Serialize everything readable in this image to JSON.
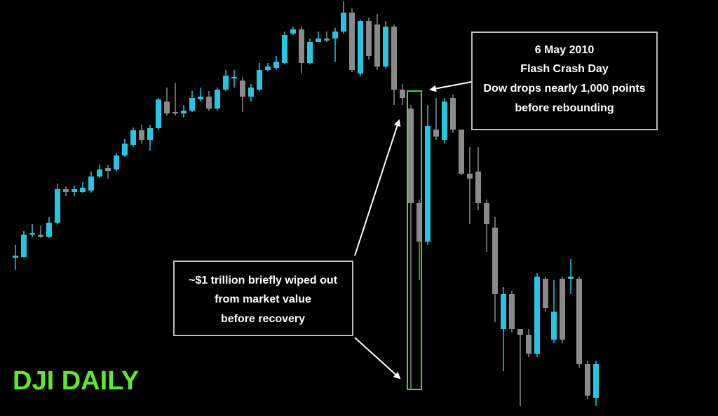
{
  "chart_data": {
    "type": "candlestick",
    "title": "DJI DAILY",
    "up_color": "#29c5e0",
    "down_color": "#8a8a8a",
    "ylim": [
      0,
      594
    ],
    "open": [
      226,
      227,
      259,
      259,
      256,
      276,
      324,
      320,
      320,
      322,
      342,
      354,
      352,
      372,
      387,
      408,
      394,
      411,
      449,
      434,
      432,
      436,
      452,
      456,
      439,
      466,
      482,
      479,
      456,
      466,
      494,
      497,
      504,
      546,
      552,
      504,
      534,
      539,
      539,
      549,
      576,
      489,
      564,
      559,
      499,
      556,
      466,
      439,
      304,
      249,
      409,
      394,
      454,
      409,
      346,
      349,
      304,
      269,
      124,
      174,
      124,
      116,
      89,
      196,
      109,
      196,
      196,
      196,
      74,
      26
    ],
    "high": [
      244,
      264,
      274,
      272,
      284,
      332,
      328,
      329,
      334,
      349,
      359,
      359,
      376,
      396,
      412,
      416,
      416,
      454,
      469,
      476,
      444,
      464,
      469,
      464,
      469,
      494,
      494,
      484,
      474,
      504,
      504,
      514,
      549,
      556,
      556,
      539,
      549,
      549,
      554,
      592,
      582,
      566,
      569,
      574,
      564,
      559,
      474,
      444,
      309,
      444,
      454,
      454,
      459,
      409,
      384,
      384,
      309,
      284,
      184,
      179,
      124,
      124,
      204,
      199,
      194,
      199,
      224,
      199,
      79,
      79
    ],
    "low": [
      209,
      226,
      256,
      254,
      254,
      274,
      314,
      314,
      318,
      319,
      340,
      339,
      349,
      370,
      384,
      389,
      379,
      409,
      429,
      429,
      426,
      434,
      449,
      436,
      436,
      464,
      469,
      434,
      449,
      464,
      492,
      494,
      502,
      544,
      489,
      502,
      534,
      534,
      506,
      546,
      491,
      486,
      509,
      494,
      496,
      444,
      444,
      39,
      194,
      244,
      394,
      389,
      404,
      344,
      274,
      294,
      234,
      134,
      64,
      119,
      14,
      84,
      84,
      149,
      104,
      104,
      174,
      69,
      24,
      14
    ],
    "close": [
      229,
      259,
      261,
      256,
      276,
      324,
      320,
      324,
      326,
      342,
      352,
      350,
      372,
      389,
      408,
      394,
      411,
      452,
      432,
      432,
      436,
      454,
      456,
      439,
      466,
      486,
      484,
      456,
      469,
      494,
      499,
      506,
      544,
      552,
      504,
      534,
      539,
      536,
      549,
      576,
      494,
      564,
      514,
      499,
      556,
      466,
      454,
      304,
      249,
      414,
      399,
      449,
      409,
      346,
      339,
      304,
      274,
      174,
      174,
      124,
      116,
      89,
      199,
      154,
      149,
      109,
      199,
      74,
      29,
      74
    ]
  },
  "annotations": {
    "flash_crash": [
      "6 May 2010",
      "Flash Crash Day",
      "Dow drops nearly 1,000 points",
      "before rebounding"
    ],
    "trillion": [
      "~$1 trillion briefly wiped out",
      "from market value",
      "before recovery"
    ]
  }
}
